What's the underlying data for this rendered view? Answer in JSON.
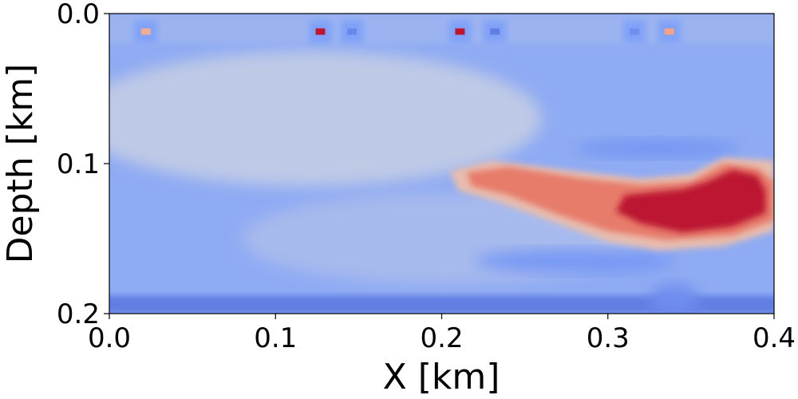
{
  "chart_data": {
    "type": "heatmap",
    "title": "",
    "xlabel": "X [km]",
    "ylabel": "Depth [km]",
    "xlim": [
      0.0,
      0.4
    ],
    "ylim": [
      0.0,
      0.2
    ],
    "y_inverted": true,
    "x_ticks": [
      {
        "value": 0.0,
        "label": "0.0"
      },
      {
        "value": 0.1,
        "label": "0.1"
      },
      {
        "value": 0.2,
        "label": "0.2"
      },
      {
        "value": 0.3,
        "label": "0.3"
      },
      {
        "value": 0.4,
        "label": "0.4"
      }
    ],
    "y_ticks": [
      {
        "value": 0.0,
        "label": "0.0"
      },
      {
        "value": 0.1,
        "label": "0.1"
      },
      {
        "value": 0.2,
        "label": "0.2"
      }
    ],
    "colormap": "coolwarm",
    "grid": false,
    "background_level": 0.3,
    "features": [
      {
        "name": "shallow light band",
        "shape": "ellipse",
        "cx": 0.12,
        "cy": 0.07,
        "rx": 0.14,
        "ry": 0.045,
        "level": 0.42
      },
      {
        "name": "mid-depth light zone",
        "shape": "ellipse",
        "cx": 0.2,
        "cy": 0.15,
        "rx": 0.12,
        "ry": 0.03,
        "level": 0.36
      },
      {
        "name": "dark band near bottom",
        "shape": "rect",
        "x0": 0.0,
        "x1": 0.4,
        "y0": 0.188,
        "y1": 0.2,
        "level": 0.15
      },
      {
        "name": "near-surface strip",
        "shape": "rect",
        "x0": 0.0,
        "x1": 0.4,
        "y0": 0.0,
        "y1": 0.02,
        "level": 0.33
      },
      {
        "name": "dark streak",
        "shape": "ellipse",
        "cx": 0.33,
        "cy": 0.09,
        "rx": 0.05,
        "ry": 0.006,
        "level": 0.22
      },
      {
        "name": "dark streak",
        "shape": "ellipse",
        "cx": 0.28,
        "cy": 0.165,
        "rx": 0.06,
        "ry": 0.008,
        "level": 0.23
      },
      {
        "name": "dark streak",
        "shape": "ellipse",
        "cx": 0.34,
        "cy": 0.19,
        "rx": 0.015,
        "ry": 0.01,
        "level": 0.2
      },
      {
        "name": "anomaly halo",
        "shape": "polygon",
        "points": [
          [
            0.205,
            0.105
          ],
          [
            0.23,
            0.098
          ],
          [
            0.28,
            0.105
          ],
          [
            0.32,
            0.11
          ],
          [
            0.35,
            0.107
          ],
          [
            0.37,
            0.096
          ],
          [
            0.4,
            0.098
          ],
          [
            0.4,
            0.145
          ],
          [
            0.37,
            0.155
          ],
          [
            0.33,
            0.158
          ],
          [
            0.3,
            0.152
          ],
          [
            0.27,
            0.14
          ],
          [
            0.235,
            0.126
          ],
          [
            0.21,
            0.118
          ]
        ],
        "level": 0.62
      },
      {
        "name": "anomaly body",
        "shape": "polygon",
        "points": [
          [
            0.215,
            0.106
          ],
          [
            0.24,
            0.102
          ],
          [
            0.285,
            0.11
          ],
          [
            0.32,
            0.114
          ],
          [
            0.35,
            0.112
          ],
          [
            0.37,
            0.1
          ],
          [
            0.39,
            0.103
          ],
          [
            0.4,
            0.112
          ],
          [
            0.4,
            0.138
          ],
          [
            0.375,
            0.148
          ],
          [
            0.335,
            0.151
          ],
          [
            0.3,
            0.145
          ],
          [
            0.27,
            0.134
          ],
          [
            0.24,
            0.121
          ],
          [
            0.218,
            0.115
          ]
        ],
        "level": 0.8
      },
      {
        "name": "anomaly core",
        "shape": "polygon",
        "points": [
          [
            0.31,
            0.121
          ],
          [
            0.345,
            0.117
          ],
          [
            0.36,
            0.112
          ],
          [
            0.375,
            0.104
          ],
          [
            0.39,
            0.108
          ],
          [
            0.395,
            0.118
          ],
          [
            0.395,
            0.133
          ],
          [
            0.375,
            0.142
          ],
          [
            0.345,
            0.146
          ],
          [
            0.32,
            0.14
          ],
          [
            0.305,
            0.132
          ]
        ],
        "level": 0.97
      },
      {
        "name": "source artifact",
        "shape": "point",
        "x": 0.022,
        "y": 0.012,
        "level": 0.68
      },
      {
        "name": "source artifact",
        "shape": "point",
        "x": 0.127,
        "y": 0.012,
        "level": 0.97
      },
      {
        "name": "source artifact",
        "shape": "point",
        "x": 0.211,
        "y": 0.012,
        "level": 0.97
      },
      {
        "name": "source artifact",
        "shape": "point",
        "x": 0.337,
        "y": 0.012,
        "level": 0.72
      },
      {
        "name": "dark artifact",
        "shape": "point",
        "x": 0.146,
        "y": 0.012,
        "level": 0.18
      },
      {
        "name": "dark artifact",
        "shape": "point",
        "x": 0.232,
        "y": 0.012,
        "level": 0.15
      },
      {
        "name": "dark artifact",
        "shape": "point",
        "x": 0.316,
        "y": 0.012,
        "level": 0.2
      }
    ]
  }
}
